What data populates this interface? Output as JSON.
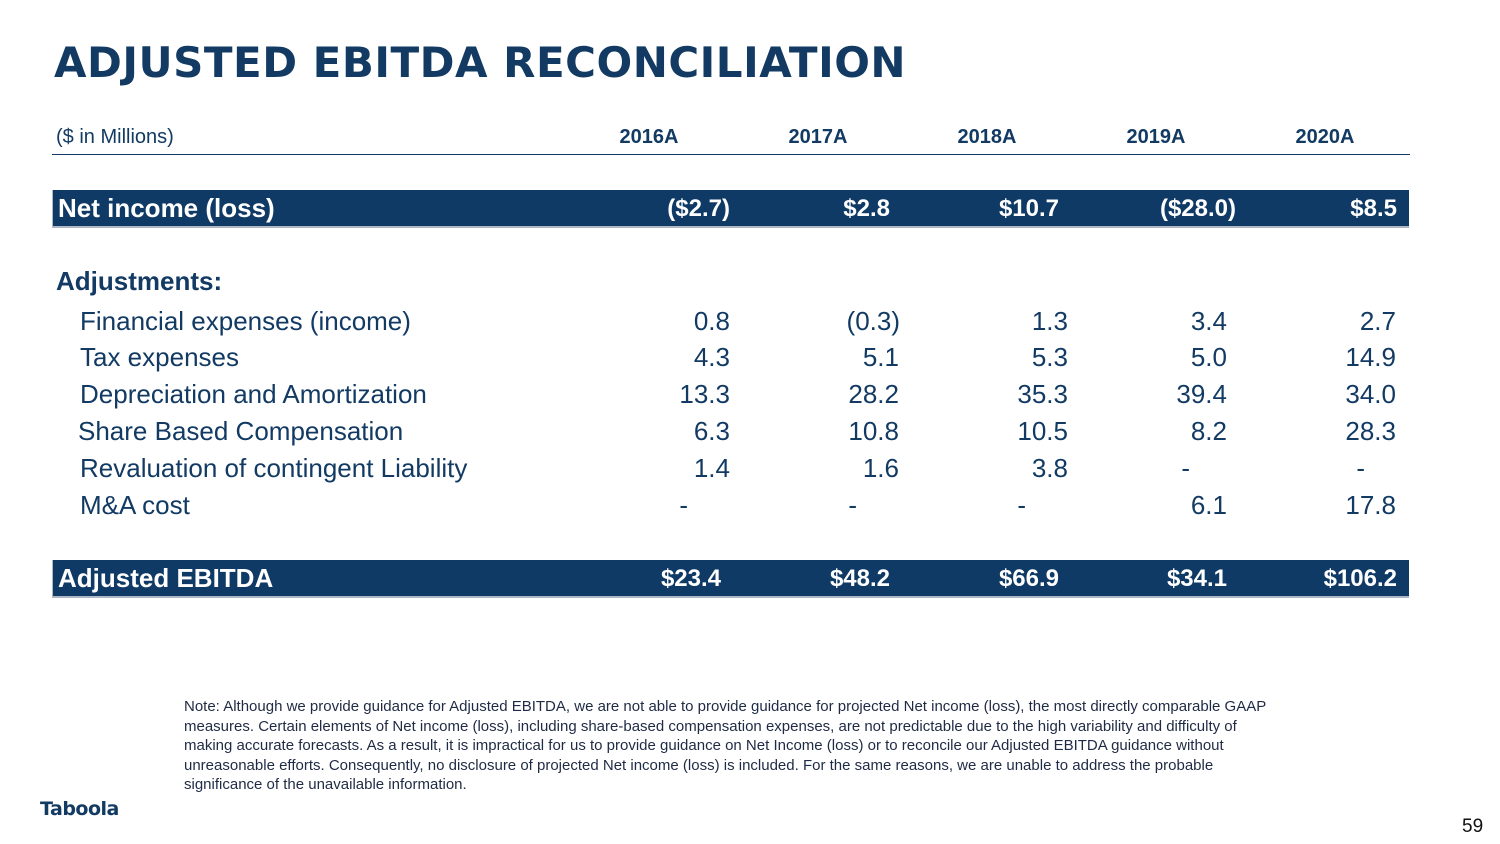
{
  "title": "ADJUSTED EBITDA RECONCILIATION",
  "units_label": "($ in Millions)",
  "years": [
    "2016A",
    "2017A",
    "2018A",
    "2019A",
    "2020A"
  ],
  "net_income": {
    "label": "Net income (loss)",
    "values": [
      "($2.7)",
      "$2.8",
      "$10.7",
      "($28.0)",
      "$8.5"
    ]
  },
  "adjustments_heading": "Adjustments:",
  "adjustments": [
    {
      "label": "Financial expenses (income)",
      "values": [
        "0.8",
        "(0.3)",
        "1.3",
        "3.4",
        "2.7"
      ]
    },
    {
      "label": "Tax expenses",
      "values": [
        "4.3",
        "5.1",
        "5.3",
        "5.0",
        "14.9"
      ]
    },
    {
      "label": "Depreciation and Amortization",
      "values": [
        "13.3",
        "28.2",
        "35.3",
        "39.4",
        "34.0"
      ]
    },
    {
      "label": "Share Based Compensation",
      "values": [
        "6.3",
        "10.8",
        "10.5",
        "8.2",
        "28.3"
      ]
    },
    {
      "label": "Revaluation of contingent Liability",
      "values": [
        "1.4",
        "1.6",
        "3.8",
        "-",
        "-"
      ]
    },
    {
      "label": "M&A cost",
      "values": [
        "-",
        "-",
        "-",
        "6.1",
        "17.8"
      ]
    }
  ],
  "adjusted_ebitda": {
    "label": "Adjusted EBITDA",
    "values": [
      "$23.4",
      "$48.2",
      "$66.9",
      "$34.1",
      "$106.2"
    ]
  },
  "note": "Note: Although we provide guidance for Adjusted EBITDA, we are not able to provide guidance for projected Net income (loss), the most directly comparable GAAP measures. Certain elements of Net income (loss), including share-based compensation expenses, are not predictable due to the high variability and difficulty of making accurate forecasts. As a result, it is impractical for us to provide guidance on Net Income (loss) or to reconcile our Adjusted EBITDA guidance without unreasonable efforts. Consequently, no disclosure of projected Net income (loss) is included. For the same reasons, we are unable to address the probable significance of the unavailable information.",
  "logo_text": "Taboola",
  "page_number": "59"
}
